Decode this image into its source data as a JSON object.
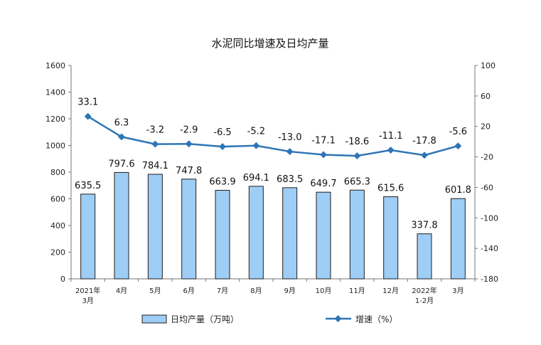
{
  "chart_data": {
    "type": "bar+line",
    "title": "水泥同比增速及日均产量",
    "categories": [
      [
        "2021年",
        "3月"
      ],
      [
        "4月"
      ],
      [
        "5月"
      ],
      [
        "6月"
      ],
      [
        "7月"
      ],
      [
        "8月"
      ],
      [
        "9月"
      ],
      [
        "10月"
      ],
      [
        "11月"
      ],
      [
        "12月"
      ],
      [
        "2022年",
        "1-2月"
      ],
      [
        "3月"
      ]
    ],
    "series": [
      {
        "name": "日均产量（万吨）",
        "type": "bar",
        "axis": "left",
        "color": "#9ecdf5",
        "values": [
          635.5,
          797.6,
          784.1,
          747.8,
          663.9,
          694.1,
          683.5,
          649.7,
          665.3,
          615.6,
          337.8,
          601.8
        ],
        "labels": [
          "635.5",
          "797.6",
          "784.1",
          "747.8",
          "663.9",
          "694.1",
          "683.5",
          "649.7",
          "665.3",
          "615.6",
          "337.8",
          "601.8"
        ]
      },
      {
        "name": "增速（%）",
        "type": "line",
        "axis": "right",
        "color": "#2e75b6",
        "values": [
          33.1,
          6.3,
          -3.2,
          -2.9,
          -6.5,
          -5.2,
          -13.0,
          -17.1,
          -18.6,
          -11.1,
          -17.8,
          -5.6
        ],
        "labels": [
          "33.1",
          "6.3",
          "-3.2",
          "-2.9",
          "-6.5",
          "-5.2",
          "-13.0",
          "-17.1",
          "-18.6",
          "-11.1",
          "-17.8",
          "-5.6"
        ]
      }
    ],
    "y_left": {
      "min": 0,
      "max": 1600,
      "ticks": [
        0,
        200,
        400,
        600,
        800,
        1000,
        1200,
        1400,
        1600
      ]
    },
    "y_right": {
      "min": -180,
      "max": 100,
      "ticks": [
        100,
        60,
        20,
        -20,
        -60,
        -100,
        -140,
        -180
      ]
    },
    "grid": false,
    "legend": "bottom"
  }
}
